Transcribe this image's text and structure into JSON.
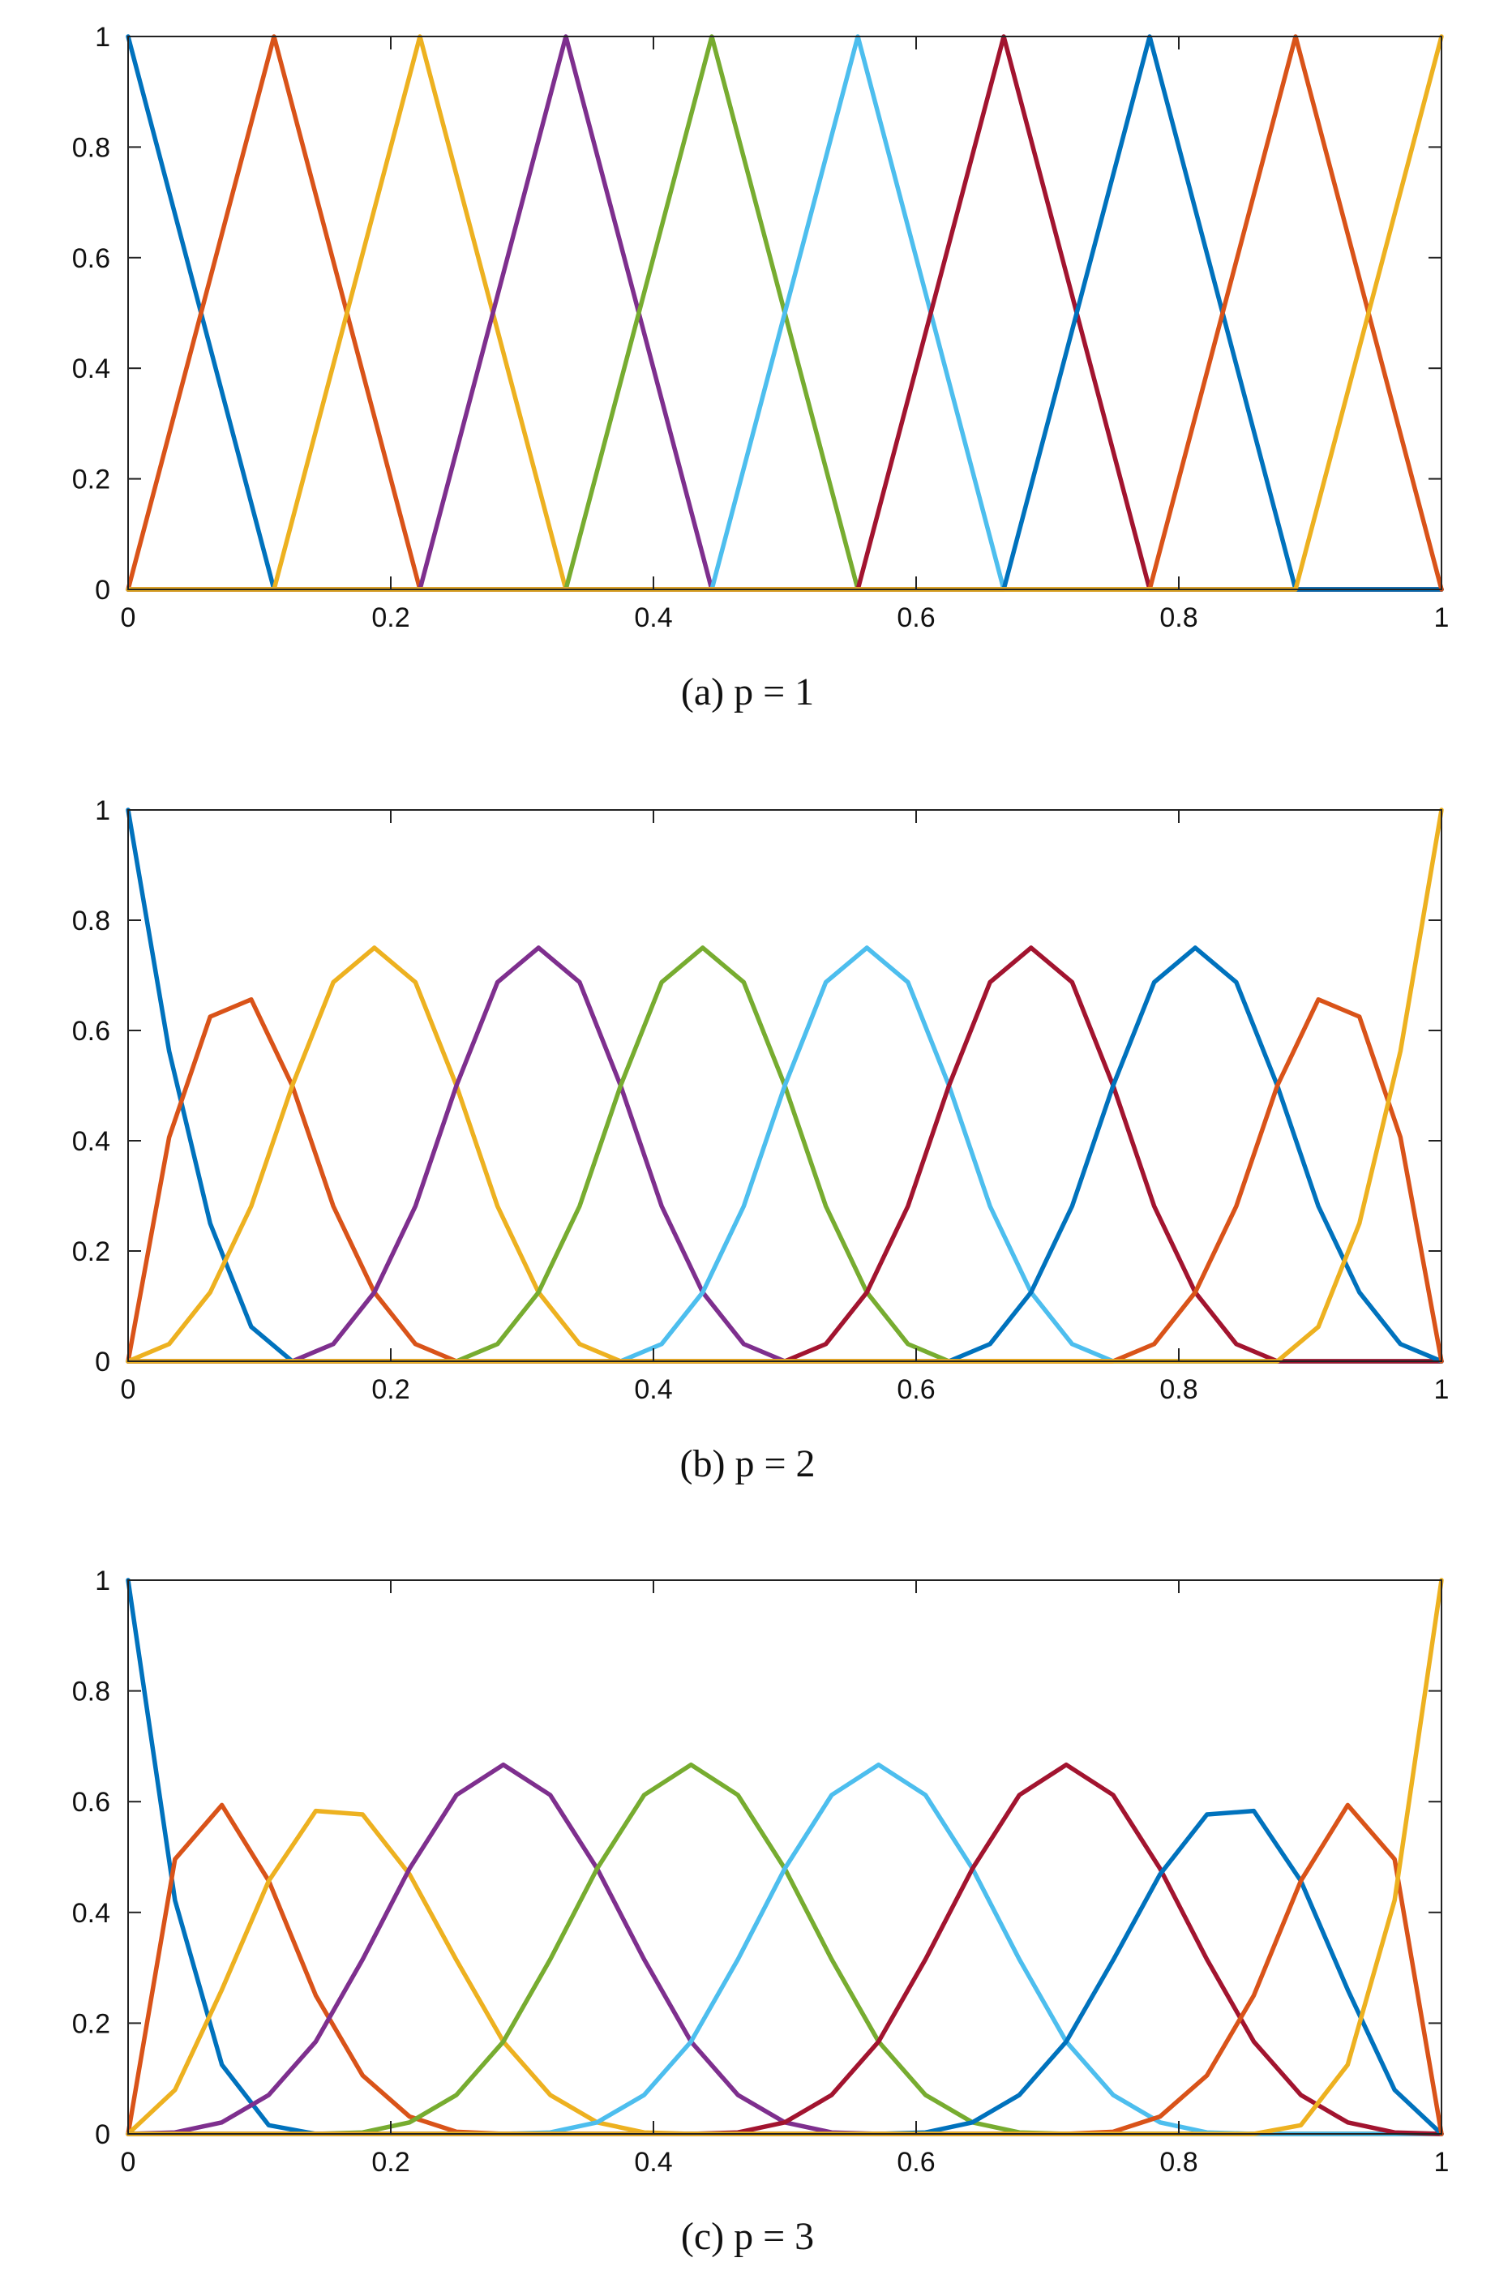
{
  "chart_data": [
    {
      "type": "line",
      "caption": "(a) p = 1",
      "xlim": [
        0,
        1
      ],
      "ylim": [
        0,
        1
      ],
      "xticks": [
        0,
        0.2,
        0.4,
        0.6,
        0.8,
        1
      ],
      "yticks": [
        0,
        0.2,
        0.4,
        0.6,
        0.8,
        1
      ],
      "x": [
        0,
        0.1111,
        0.2222,
        0.3333,
        0.4444,
        0.5556,
        0.6667,
        0.7778,
        0.8889,
        1
      ],
      "series": [
        {
          "color": "#0072BD",
          "values": [
            1,
            0,
            0,
            0,
            0,
            0,
            0,
            0,
            0,
            0
          ]
        },
        {
          "color": "#D95319",
          "values": [
            0,
            1,
            0,
            0,
            0,
            0,
            0,
            0,
            0,
            0
          ]
        },
        {
          "color": "#EDB120",
          "values": [
            0,
            0,
            1,
            0,
            0,
            0,
            0,
            0,
            0,
            0
          ]
        },
        {
          "color": "#7E2F8E",
          "values": [
            0,
            0,
            0,
            1,
            0,
            0,
            0,
            0,
            0,
            0
          ]
        },
        {
          "color": "#77AC30",
          "values": [
            0,
            0,
            0,
            0,
            1,
            0,
            0,
            0,
            0,
            0
          ]
        },
        {
          "color": "#4DBEEE",
          "values": [
            0,
            0,
            0,
            0,
            0,
            1,
            0,
            0,
            0,
            0
          ]
        },
        {
          "color": "#A2142F",
          "values": [
            0,
            0,
            0,
            0,
            0,
            0,
            1,
            0,
            0,
            0
          ]
        },
        {
          "color": "#0072BD",
          "values": [
            0,
            0,
            0,
            0,
            0,
            0,
            0,
            1,
            0,
            0
          ]
        },
        {
          "color": "#D95319",
          "values": [
            0,
            0,
            0,
            0,
            0,
            0,
            0,
            0,
            1,
            0
          ]
        },
        {
          "color": "#EDB120",
          "values": [
            0,
            0,
            0,
            0,
            0,
            0,
            0,
            0,
            0,
            1
          ]
        }
      ]
    },
    {
      "type": "line",
      "caption": "(b) p = 2",
      "xlim": [
        0,
        1
      ],
      "ylim": [
        0,
        1
      ],
      "xticks": [
        0,
        0.2,
        0.4,
        0.6,
        0.8,
        1
      ],
      "yticks": [
        0,
        0.2,
        0.4,
        0.6,
        0.8,
        1
      ],
      "x": [
        0,
        0.03125,
        0.0625,
        0.09375,
        0.125,
        0.15625,
        0.1875,
        0.21875,
        0.25,
        0.28125,
        0.3125,
        0.34375,
        0.375,
        0.40625,
        0.4375,
        0.46875,
        0.5,
        0.53125,
        0.5625,
        0.59375,
        0.625,
        0.65625,
        0.6875,
        0.71875,
        0.75,
        0.78125,
        0.8125,
        0.84375,
        0.875,
        0.90625,
        0.9375,
        0.96875,
        1
      ],
      "series": [
        {
          "color": "#0072BD",
          "values": [
            1,
            0.5625,
            0.25,
            0.0625,
            0,
            0,
            0,
            0,
            0,
            0,
            0,
            0,
            0,
            0,
            0,
            0,
            0,
            0,
            0,
            0,
            0,
            0,
            0,
            0,
            0,
            0,
            0,
            0,
            0,
            0,
            0,
            0,
            0
          ]
        },
        {
          "color": "#D95319",
          "values": [
            0,
            0.40625,
            0.625,
            0.65625,
            0.5,
            0.28125,
            0.125,
            0.03125,
            0,
            0,
            0,
            0,
            0,
            0,
            0,
            0,
            0,
            0,
            0,
            0,
            0,
            0,
            0,
            0,
            0,
            0,
            0,
            0,
            0,
            0,
            0,
            0,
            0
          ]
        },
        {
          "color": "#EDB120",
          "values": [
            0,
            0.03125,
            0.125,
            0.28125,
            0.5,
            0.6875,
            0.75,
            0.6875,
            0.5,
            0.28125,
            0.125,
            0.03125,
            0,
            0,
            0,
            0,
            0,
            0,
            0,
            0,
            0,
            0,
            0,
            0,
            0,
            0,
            0,
            0,
            0,
            0,
            0,
            0,
            0
          ]
        },
        {
          "color": "#7E2F8E",
          "values": [
            0,
            0,
            0,
            0,
            0,
            0.03125,
            0.125,
            0.28125,
            0.5,
            0.6875,
            0.75,
            0.6875,
            0.5,
            0.28125,
            0.125,
            0.03125,
            0,
            0,
            0,
            0,
            0,
            0,
            0,
            0,
            0,
            0,
            0,
            0,
            0,
            0,
            0,
            0,
            0
          ]
        },
        {
          "color": "#77AC30",
          "values": [
            0,
            0,
            0,
            0,
            0,
            0,
            0,
            0,
            0,
            0.03125,
            0.125,
            0.28125,
            0.5,
            0.6875,
            0.75,
            0.6875,
            0.5,
            0.28125,
            0.125,
            0.03125,
            0,
            0,
            0,
            0,
            0,
            0,
            0,
            0,
            0,
            0,
            0,
            0,
            0
          ]
        },
        {
          "color": "#4DBEEE",
          "values": [
            0,
            0,
            0,
            0,
            0,
            0,
            0,
            0,
            0,
            0,
            0,
            0,
            0,
            0.03125,
            0.125,
            0.28125,
            0.5,
            0.6875,
            0.75,
            0.6875,
            0.5,
            0.28125,
            0.125,
            0.03125,
            0,
            0,
            0,
            0,
            0,
            0,
            0,
            0,
            0
          ]
        },
        {
          "color": "#A2142F",
          "values": [
            0,
            0,
            0,
            0,
            0,
            0,
            0,
            0,
            0,
            0,
            0,
            0,
            0,
            0,
            0,
            0,
            0,
            0.03125,
            0.125,
            0.28125,
            0.5,
            0.6875,
            0.75,
            0.6875,
            0.5,
            0.28125,
            0.125,
            0.03125,
            0,
            0,
            0,
            0,
            0
          ]
        },
        {
          "color": "#0072BD",
          "values": [
            0,
            0,
            0,
            0,
            0,
            0,
            0,
            0,
            0,
            0,
            0,
            0,
            0,
            0,
            0,
            0,
            0,
            0,
            0,
            0,
            0,
            0.03125,
            0.125,
            0.28125,
            0.5,
            0.6875,
            0.75,
            0.6875,
            0.5,
            0.28125,
            0.125,
            0.03125,
            0
          ]
        },
        {
          "color": "#D95319",
          "values": [
            0,
            0,
            0,
            0,
            0,
            0,
            0,
            0,
            0,
            0,
            0,
            0,
            0,
            0,
            0,
            0,
            0,
            0,
            0,
            0,
            0,
            0,
            0,
            0,
            0,
            0.03125,
            0.125,
            0.28125,
            0.5,
            0.65625,
            0.625,
            0.40625,
            0
          ]
        },
        {
          "color": "#EDB120",
          "values": [
            0,
            0,
            0,
            0,
            0,
            0,
            0,
            0,
            0,
            0,
            0,
            0,
            0,
            0,
            0,
            0,
            0,
            0,
            0,
            0,
            0,
            0,
            0,
            0,
            0,
            0,
            0,
            0,
            0,
            0.0625,
            0.25,
            0.5625,
            1
          ]
        }
      ]
    },
    {
      "type": "line",
      "caption": "(c) p = 3",
      "xlim": [
        0,
        1
      ],
      "ylim": [
        0,
        1
      ],
      "xticks": [
        0,
        0.2,
        0.4,
        0.6,
        0.8,
        1
      ],
      "yticks": [
        0,
        0.2,
        0.4,
        0.6,
        0.8,
        1
      ],
      "x": [
        0,
        0.0357,
        0.0714,
        0.1071,
        0.1429,
        0.1786,
        0.2143,
        0.25,
        0.2857,
        0.3214,
        0.3571,
        0.3929,
        0.4286,
        0.4643,
        0.5,
        0.5357,
        0.5714,
        0.6071,
        0.6429,
        0.6786,
        0.7143,
        0.75,
        0.7857,
        0.8214,
        0.8571,
        0.8929,
        0.9286,
        0.9643,
        1
      ],
      "series": [
        {
          "color": "#0072BD",
          "values": [
            1,
            0.4219,
            0.125,
            0.0156,
            0,
            0,
            0,
            0,
            0,
            0,
            0,
            0,
            0,
            0,
            0,
            0,
            0,
            0,
            0,
            0,
            0,
            0,
            0,
            0,
            0,
            0,
            0,
            0,
            0
          ]
        },
        {
          "color": "#D95319",
          "values": [
            0,
            0.4961,
            0.5938,
            0.457,
            0.25,
            0.1055,
            0.0313,
            0.0039,
            0,
            0,
            0,
            0,
            0,
            0,
            0,
            0,
            0,
            0,
            0,
            0,
            0,
            0,
            0,
            0,
            0,
            0,
            0,
            0,
            0
          ]
        },
        {
          "color": "#EDB120",
          "values": [
            0,
            0.0794,
            0.2604,
            0.457,
            0.5833,
            0.5768,
            0.4688,
            0.3138,
            0.1667,
            0.0703,
            0.0208,
            0.0026,
            0,
            0,
            0,
            0,
            0,
            0,
            0,
            0,
            0,
            0,
            0,
            0,
            0,
            0,
            0,
            0,
            0
          ]
        },
        {
          "color": "#7E2F8E",
          "values": [
            0,
            0.0026,
            0.0208,
            0.0703,
            0.1667,
            0.3151,
            0.4792,
            0.612,
            0.6667,
            0.612,
            0.4792,
            0.3151,
            0.1667,
            0.0703,
            0.0208,
            0.0026,
            0,
            0,
            0,
            0,
            0,
            0,
            0,
            0,
            0,
            0,
            0,
            0,
            0
          ]
        },
        {
          "color": "#77AC30",
          "values": [
            0,
            0,
            0,
            0,
            0,
            0.0026,
            0.0208,
            0.0703,
            0.1667,
            0.3151,
            0.4792,
            0.612,
            0.6667,
            0.612,
            0.4792,
            0.3151,
            0.1667,
            0.0703,
            0.0208,
            0.0026,
            0,
            0,
            0,
            0,
            0,
            0,
            0,
            0,
            0
          ]
        },
        {
          "color": "#4DBEEE",
          "values": [
            0,
            0,
            0,
            0,
            0,
            0,
            0,
            0,
            0,
            0.0026,
            0.0208,
            0.0703,
            0.1667,
            0.3151,
            0.4792,
            0.612,
            0.6667,
            0.612,
            0.4792,
            0.3151,
            0.1667,
            0.0703,
            0.0208,
            0.0026,
            0,
            0,
            0,
            0,
            0
          ]
        },
        {
          "color": "#A2142F",
          "values": [
            0,
            0,
            0,
            0,
            0,
            0,
            0,
            0,
            0,
            0,
            0,
            0,
            0,
            0.0026,
            0.0208,
            0.0703,
            0.1667,
            0.3151,
            0.4792,
            0.612,
            0.6667,
            0.612,
            0.4792,
            0.3151,
            0.1667,
            0.0703,
            0.0208,
            0.0026,
            0
          ]
        },
        {
          "color": "#0072BD",
          "values": [
            0,
            0,
            0,
            0,
            0,
            0,
            0,
            0,
            0,
            0,
            0,
            0,
            0,
            0,
            0,
            0,
            0,
            0.0026,
            0.0208,
            0.0703,
            0.1667,
            0.3138,
            0.4688,
            0.5768,
            0.5833,
            0.457,
            0.2604,
            0.0794,
            0
          ]
        },
        {
          "color": "#D95319",
          "values": [
            0,
            0,
            0,
            0,
            0,
            0,
            0,
            0,
            0,
            0,
            0,
            0,
            0,
            0,
            0,
            0,
            0,
            0,
            0,
            0,
            0,
            0.0039,
            0.0313,
            0.1055,
            0.25,
            0.457,
            0.5938,
            0.4961,
            0
          ]
        },
        {
          "color": "#EDB120",
          "values": [
            0,
            0,
            0,
            0,
            0,
            0,
            0,
            0,
            0,
            0,
            0,
            0,
            0,
            0,
            0,
            0,
            0,
            0,
            0,
            0,
            0,
            0,
            0,
            0,
            0,
            0.0156,
            0.125,
            0.4219,
            1
          ]
        }
      ]
    }
  ]
}
